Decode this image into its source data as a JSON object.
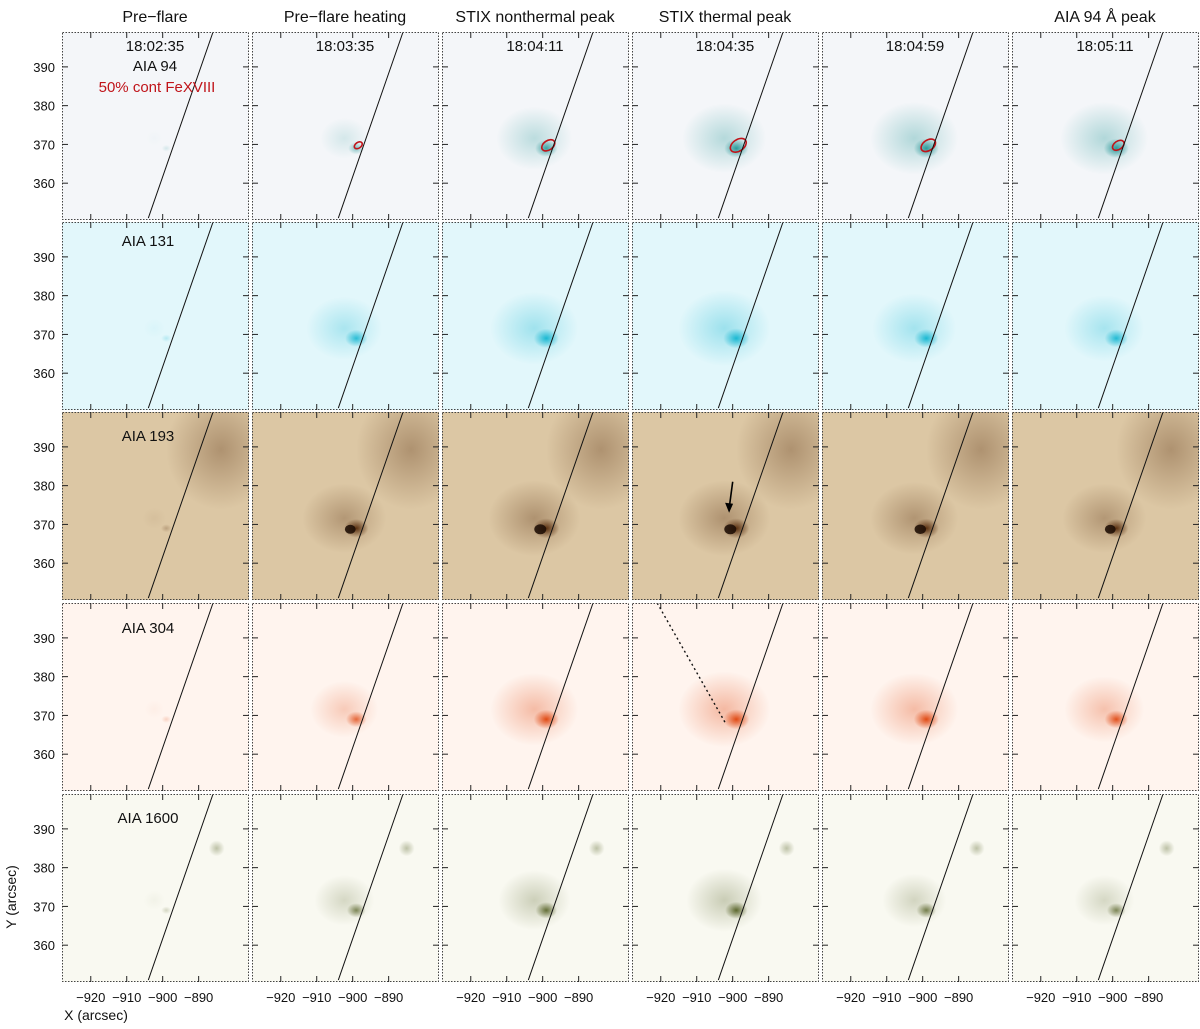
{
  "figure": {
    "column_headers": [
      "Pre−flare",
      "Pre−flare heating",
      "STIX nonthermal peak",
      "STIX thermal peak",
      "",
      "AIA 94 Å peak"
    ],
    "timestamps": [
      "18:02:35",
      "18:03:35",
      "18:04:11",
      "18:04:35",
      "18:04:59",
      "18:05:11"
    ],
    "row_labels": [
      "AIA 94",
      "AIA 131",
      "AIA 193",
      "AIA 304",
      "AIA 1600"
    ],
    "contour_legend": "50% cont FeXVIII",
    "contour_color": "#c0141a",
    "x_axis_label": "X (arcsec)",
    "y_axis_label": "Y (arcsec)",
    "x_tick_labels": [
      "−920",
      "−910",
      "−900",
      "−890"
    ],
    "x_ticks": [
      -920,
      -910,
      -900,
      -890
    ],
    "y_tick_labels": [
      "390",
      "380",
      "370",
      "360"
    ],
    "y_ticks": [
      390,
      380,
      370,
      360
    ],
    "x_range": [
      -928,
      -876
    ],
    "y_range": [
      350.5,
      399
    ],
    "row_colors": [
      "#2a9a9a",
      "#1ab8d2",
      "#5a3010",
      "#e04a14",
      "#4e5a1c"
    ],
    "row_backgrounds": [
      "#f4f6f9",
      "#e2f7fb",
      "#dcc7a4",
      "#fff4ee",
      "#f9f9f1"
    ],
    "source_center": [
      -899,
      369
    ],
    "limb_line": {
      "top": [
        -886,
        399
      ],
      "bottom": [
        -904,
        351
      ]
    },
    "contour_sizes": [
      0,
      1.1,
      1.8,
      2.2,
      2.0,
      1.6
    ],
    "intensity": [
      [
        0.06,
        0.45,
        0.8,
        0.9,
        0.95,
        0.95
      ],
      [
        0.12,
        0.8,
        0.95,
        1.0,
        0.9,
        0.85
      ],
      [
        0.15,
        0.9,
        1.0,
        1.0,
        0.95,
        0.9
      ],
      [
        0.1,
        0.7,
        0.95,
        1.0,
        0.95,
        0.85
      ],
      [
        0.12,
        0.6,
        0.75,
        0.8,
        0.65,
        0.6
      ]
    ],
    "thermal_peak_arrow": {
      "from": [
        -900,
        381
      ],
      "to": [
        -901,
        373
      ]
    },
    "loop_trace": {
      "from": [
        -921,
        399
      ],
      "to": [
        -902,
        368
      ]
    }
  }
}
